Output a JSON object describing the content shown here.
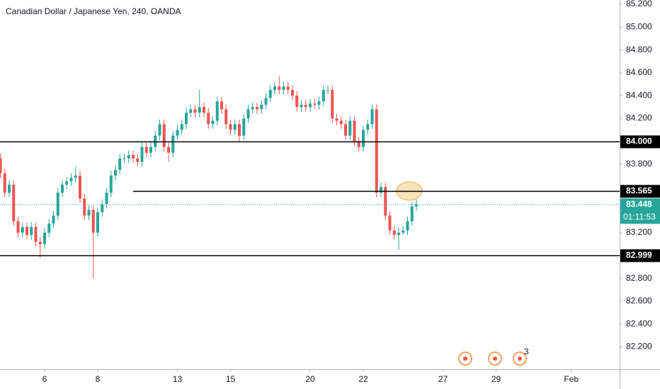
{
  "chart_data": {
    "type": "candlestick",
    "title": "Canadian Dollar / Japanese Yen, 240, OANDA",
    "x": [
      -10,
      -9,
      -8,
      -7,
      -6,
      -5,
      -4,
      -3,
      -2,
      -1,
      0,
      1,
      2,
      3,
      4,
      5,
      6,
      7,
      8,
      9,
      10,
      11,
      12,
      13,
      14,
      15,
      16,
      17,
      18,
      19,
      20,
      21,
      22,
      23,
      24,
      25,
      26,
      27,
      28,
      29,
      30,
      31,
      32,
      33,
      34,
      35,
      36,
      37,
      38,
      39,
      40,
      41,
      42,
      43,
      44,
      45,
      46,
      47,
      48,
      49,
      50,
      51,
      52,
      53,
      54,
      55,
      56,
      57,
      58,
      59,
      60,
      61,
      62,
      63,
      64,
      65,
      66,
      67,
      68,
      69,
      70,
      71,
      72,
      73,
      74,
      75,
      76,
      77,
      78,
      79,
      80,
      81,
      82,
      83,
      84
    ],
    "open": [
      83.85,
      83.72,
      83.55,
      83.62,
      83.3,
      83.2,
      83.25,
      83.18,
      83.25,
      83.12,
      83.1,
      83.2,
      83.28,
      83.35,
      83.55,
      83.62,
      83.65,
      83.68,
      83.7,
      83.5,
      83.35,
      83.4,
      83.2,
      83.38,
      83.45,
      83.55,
      83.7,
      83.75,
      83.85,
      83.85,
      83.88,
      83.85,
      83.82,
      83.95,
      83.9,
      83.95,
      84.05,
      84.15,
      83.95,
      83.9,
      84.05,
      84.1,
      84.15,
      84.25,
      84.28,
      84.25,
      84.3,
      84.25,
      84.15,
      84.18,
      84.35,
      84.28,
      84.15,
      84.1,
      84.15,
      84.05,
      84.2,
      84.28,
      84.3,
      84.28,
      84.32,
      84.38,
      84.45,
      84.48,
      84.45,
      84.48,
      84.45,
      84.4,
      84.3,
      84.32,
      84.3,
      84.33,
      84.32,
      84.35,
      84.45,
      84.45,
      84.2,
      84.18,
      84.15,
      84.05,
      84.18,
      84.0,
      83.95,
      84.1,
      84.15,
      84.28,
      83.55,
      83.6,
      83.35,
      83.22,
      83.18,
      83.2,
      83.22,
      83.3,
      83.43
    ],
    "high": [
      83.89,
      83.76,
      83.66,
      83.66,
      83.34,
      83.29,
      83.29,
      83.29,
      83.29,
      83.16,
      83.24,
      83.32,
      83.39,
      83.59,
      83.66,
      83.69,
      83.72,
      83.78,
      83.74,
      83.54,
      83.44,
      83.44,
      83.42,
      83.49,
      83.59,
      83.74,
      83.79,
      83.89,
      83.89,
      83.92,
      83.92,
      83.89,
      83.99,
      83.99,
      83.99,
      84.09,
      84.19,
      84.19,
      83.99,
      84.09,
      84.14,
      84.19,
      84.29,
      84.32,
      84.32,
      84.45,
      84.34,
      84.29,
      84.22,
      84.39,
      84.39,
      84.32,
      84.19,
      84.19,
      84.19,
      84.24,
      84.32,
      84.34,
      84.34,
      84.36,
      84.42,
      84.49,
      84.52,
      84.57,
      84.52,
      84.52,
      84.49,
      84.44,
      84.36,
      84.36,
      84.37,
      84.37,
      84.39,
      84.49,
      84.49,
      84.49,
      84.24,
      84.22,
      84.19,
      84.22,
      84.22,
      84.04,
      84.14,
      84.19,
      84.32,
      84.32,
      83.64,
      83.64,
      83.39,
      83.26,
      83.24,
      83.26,
      83.34,
      83.47,
      83.49
    ],
    "low": [
      83.68,
      83.51,
      83.51,
      83.26,
      83.16,
      83.16,
      83.14,
      83.14,
      83.08,
      82.98,
      83.06,
      83.16,
      83.24,
      83.31,
      83.51,
      83.58,
      83.61,
      83.64,
      83.46,
      83.31,
      83.31,
      82.8,
      83.16,
      83.34,
      83.41,
      83.51,
      83.66,
      83.71,
      83.81,
      83.81,
      83.81,
      83.78,
      83.78,
      83.86,
      83.86,
      83.91,
      84.01,
      83.91,
      83.82,
      83.86,
      84.01,
      84.06,
      84.11,
      84.21,
      84.21,
      84.21,
      84.21,
      84.11,
      84.11,
      84.14,
      84.24,
      84.11,
      84.06,
      84.06,
      84.0,
      84.01,
      84.16,
      84.24,
      84.24,
      84.24,
      84.28,
      84.34,
      84.41,
      84.41,
      84.41,
      84.41,
      84.36,
      84.26,
      84.26,
      84.26,
      84.26,
      84.28,
      84.28,
      84.31,
      84.41,
      84.16,
      84.14,
      84.11,
      84.01,
      84.01,
      83.96,
      83.91,
      83.91,
      84.06,
      84.11,
      83.51,
      83.51,
      83.31,
      83.18,
      83.14,
      83.05,
      83.18,
      83.18,
      83.26,
      83.39
    ],
    "close": [
      83.72,
      83.55,
      83.62,
      83.3,
      83.2,
      83.25,
      83.18,
      83.25,
      83.12,
      83.1,
      83.2,
      83.28,
      83.35,
      83.55,
      83.62,
      83.65,
      83.68,
      83.7,
      83.5,
      83.35,
      83.4,
      83.2,
      83.38,
      83.45,
      83.55,
      83.7,
      83.75,
      83.85,
      83.85,
      83.88,
      83.85,
      83.82,
      83.95,
      83.9,
      83.95,
      84.05,
      84.15,
      83.95,
      83.9,
      84.05,
      84.1,
      84.15,
      84.25,
      84.28,
      84.25,
      84.3,
      84.25,
      84.15,
      84.18,
      84.35,
      84.28,
      84.15,
      84.1,
      84.15,
      84.05,
      84.2,
      84.28,
      84.3,
      84.28,
      84.32,
      84.38,
      84.45,
      84.48,
      84.45,
      84.48,
      84.45,
      84.4,
      84.3,
      84.32,
      84.3,
      84.33,
      84.32,
      84.35,
      84.45,
      84.45,
      84.2,
      84.18,
      84.15,
      84.05,
      84.18,
      84.0,
      83.95,
      84.1,
      84.15,
      84.28,
      83.55,
      83.6,
      83.35,
      83.22,
      83.18,
      83.2,
      83.22,
      83.3,
      83.43,
      83.45
    ],
    "up_color": "#26a69a",
    "down_color": "#ef5350",
    "xlim": [
      -10.08,
      129.92
    ],
    "xticks": [
      {
        "value": 0,
        "label": "6"
      },
      {
        "value": 12,
        "label": "8"
      },
      {
        "value": 30,
        "label": "13"
      },
      {
        "value": 42,
        "label": "15"
      },
      {
        "value": 60,
        "label": "20"
      },
      {
        "value": 72,
        "label": "22"
      },
      {
        "value": 90,
        "label": "27"
      },
      {
        "value": 102,
        "label": "29"
      },
      {
        "value": 119,
        "label": "Feb"
      }
    ],
    "ylim": [
      82.005,
      85.237
    ],
    "yticks": [
      {
        "value": 85.2,
        "label": "85.200"
      },
      {
        "value": 85.0,
        "label": "85.000"
      },
      {
        "value": 84.8,
        "label": "84.800"
      },
      {
        "value": 84.6,
        "label": "84.600"
      },
      {
        "value": 84.4,
        "label": "84.400"
      },
      {
        "value": 84.2,
        "label": "84.200"
      },
      {
        "value": 83.8,
        "label": "83.800"
      },
      {
        "value": 83.2,
        "label": "83.200"
      },
      {
        "value": 82.8,
        "label": "82.800"
      },
      {
        "value": 82.6,
        "label": "82.600"
      },
      {
        "value": 82.4,
        "label": "82.400"
      },
      {
        "value": 82.2,
        "label": "82.200"
      }
    ],
    "levels": [
      {
        "value": 84.0,
        "label": "84.000"
      },
      {
        "value": 83.565,
        "label": "83.565",
        "x_start": 20
      },
      {
        "value": 82.999,
        "label": "82.999"
      }
    ],
    "last_price": {
      "value": 83.448,
      "label": "83.448",
      "countdown": "01:11:53",
      "color": "#26a69a"
    },
    "events_badge": "3"
  }
}
